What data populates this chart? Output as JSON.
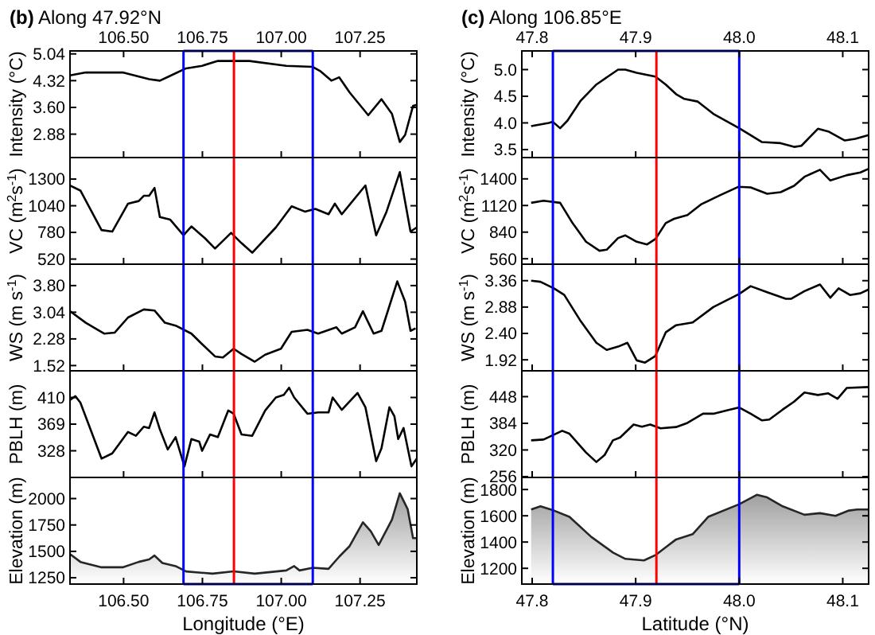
{
  "chart_data": [
    {
      "type": "line",
      "title": "(b) Along 47.92°N",
      "ylabel": "Intensity (°C)",
      "xlim": [
        106.33,
        107.43
      ],
      "xticks": [
        106.5,
        106.75,
        107,
        107.25
      ],
      "x2lim": [
        106.33,
        107.43
      ],
      "x2ticks": [
        {
          "value": 106.5,
          "label": "106.50"
        },
        106.75,
        {
          "value": 107,
          "label": "107.00"
        },
        107.25
      ],
      "tick_labels": "y",
      "ylim": [
        2.25,
        5.12
      ],
      "yticks": [
        2.88,
        {
          "value": 3.6,
          "label": "3.60"
        },
        4.32,
        5.04
      ],
      "color": "#000000",
      "x": [
        106.33,
        106.38,
        106.497,
        106.581,
        106.615,
        106.648,
        106.698,
        106.749,
        106.799,
        106.899,
        107.016,
        107.1,
        107.125,
        107.159,
        107.184,
        107.217,
        107.276,
        107.318,
        107.351,
        107.376,
        107.393,
        107.418,
        107.43
      ],
      "values": [
        4.46,
        4.54,
        4.54,
        4.36,
        4.32,
        4.45,
        4.65,
        4.72,
        4.85,
        4.85,
        4.72,
        4.69,
        4.57,
        4.32,
        4.41,
        4.0,
        3.39,
        3.82,
        3.43,
        2.67,
        2.86,
        3.64,
        3.67
      ],
      "ref_lines": [
        {
          "axis": "x",
          "value": 106.69,
          "color": "#0000ff"
        },
        {
          "axis": "x",
          "value": 107.1,
          "color": "#0000ff"
        },
        {
          "axis": "x",
          "value": 106.85,
          "color": "#ff0000"
        }
      ]
    },
    {
      "type": "line",
      "ylabel": "VC (m$^{2}$s$^{-1}$)",
      "xlim": [
        106.33,
        107.43
      ],
      "xticks": [
        106.5,
        106.75,
        107,
        107.25
      ],
      "tick_labels": "y",
      "ylim": [
        470,
        1510
      ],
      "yticks": [
        520,
        780,
        1040,
        1300
      ],
      "color": "#000000",
      "x": [
        106.33,
        106.363,
        106.43,
        106.464,
        106.514,
        106.548,
        106.564,
        106.581,
        106.598,
        106.615,
        106.648,
        106.69,
        106.715,
        106.757,
        106.79,
        106.841,
        106.874,
        106.908,
        106.983,
        107.033,
        107.075,
        107.108,
        107.15,
        107.17,
        107.192,
        107.267,
        107.301,
        107.334,
        107.376,
        107.41,
        107.43
      ],
      "values": [
        1238,
        1188,
        803,
        788,
        1060,
        1086,
        1137,
        1137,
        1214,
        930,
        904,
        752,
        838,
        726,
        622,
        776,
        675,
        582,
        829,
        1034,
        983,
        1009,
        957,
        1060,
        957,
        1238,
        752,
        983,
        1368,
        788,
        829
      ],
      "ref_lines": [
        {
          "axis": "x",
          "value": 106.69,
          "color": "#0000ff"
        },
        {
          "axis": "x",
          "value": 107.1,
          "color": "#0000ff"
        },
        {
          "axis": "x",
          "value": 106.85,
          "color": "#ff0000"
        }
      ]
    },
    {
      "type": "line",
      "ylabel": "WS (m s$^{-1}$)",
      "xlim": [
        106.33,
        107.43
      ],
      "xticks": [
        106.5,
        106.75,
        107,
        107.25
      ],
      "tick_labels": "y",
      "ylim": [
        1.37,
        4.41
      ],
      "yticks": [
        1.52,
        2.28,
        3.04,
        {
          "value": 3.8,
          "label": "3.80"
        }
      ],
      "color": "#000000",
      "x": [
        106.33,
        106.38,
        106.439,
        106.472,
        106.514,
        106.564,
        106.598,
        106.631,
        106.665,
        106.715,
        106.749,
        106.79,
        106.815,
        106.849,
        106.874,
        106.916,
        106.949,
        106.999,
        107.033,
        107.083,
        107.117,
        107.175,
        107.192,
        107.234,
        107.259,
        107.293,
        107.318,
        107.368,
        107.393,
        107.41,
        107.426
      ],
      "values": [
        3.07,
        2.74,
        2.43,
        2.46,
        2.89,
        3.12,
        3.09,
        2.74,
        2.66,
        2.43,
        2.13,
        1.78,
        1.75,
        2.0,
        1.85,
        1.63,
        1.83,
        2.0,
        2.48,
        2.54,
        2.43,
        2.61,
        2.43,
        2.61,
        3.07,
        2.43,
        2.51,
        3.92,
        3.34,
        2.51,
        2.58
      ],
      "ref_lines": [
        {
          "axis": "x",
          "value": 106.69,
          "color": "#0000ff"
        },
        {
          "axis": "x",
          "value": 107.1,
          "color": "#0000ff"
        },
        {
          "axis": "x",
          "value": 106.85,
          "color": "#ff0000"
        }
      ]
    },
    {
      "type": "line",
      "ylabel": "PBLH (m)",
      "xlim": [
        106.33,
        107.43
      ],
      "xticks": [
        106.5,
        106.75,
        107,
        107.25
      ],
      "tick_labels": "y",
      "ylim": [
        287,
        451
      ],
      "yticks": [
        328,
        369,
        410
      ],
      "color": "#000000",
      "x": [
        106.33,
        106.347,
        106.363,
        106.43,
        106.464,
        106.514,
        106.539,
        106.564,
        106.581,
        106.598,
        106.615,
        106.64,
        106.665,
        106.693,
        106.715,
        106.74,
        106.749,
        106.774,
        106.799,
        106.832,
        106.849,
        106.874,
        106.908,
        106.949,
        106.983,
        107.008,
        107.025,
        107.041,
        107.083,
        107.117,
        107.15,
        107.163,
        107.192,
        107.242,
        107.267,
        107.301,
        107.318,
        107.343,
        107.359,
        107.371,
        107.388,
        107.413,
        107.43
      ],
      "values": [
        406,
        412,
        402,
        316,
        324,
        357,
        351,
        365,
        363,
        387,
        361,
        330,
        349,
        304,
        346,
        342,
        328,
        353,
        349,
        390,
        385,
        353,
        351,
        390,
        410,
        414,
        425,
        410,
        385,
        387,
        387,
        410,
        391,
        417,
        395,
        312,
        332,
        395,
        381,
        346,
        363,
        304,
        316
      ],
      "ref_lines": [
        {
          "axis": "x",
          "value": 106.69,
          "color": "#0000ff"
        },
        {
          "axis": "x",
          "value": 107.1,
          "color": "#0000ff"
        },
        {
          "axis": "x",
          "value": 106.85,
          "color": "#ff0000"
        }
      ]
    },
    {
      "type": "area",
      "ylabel": "Elevation (m)",
      "xlabel": "Longitude (°E)",
      "xlim": [
        106.33,
        107.43
      ],
      "xticks": [
        {
          "value": 106.5,
          "label": "106.50"
        },
        106.75,
        {
          "value": 107,
          "label": "107.00"
        },
        107.25
      ],
      "ylim": [
        1190,
        2200
      ],
      "yticks": [
        1250,
        1500,
        1750,
        2000
      ],
      "color": "#a0a0a0",
      "x": [
        106.33,
        106.363,
        106.43,
        106.497,
        106.548,
        106.581,
        106.598,
        106.623,
        106.665,
        106.698,
        106.782,
        106.849,
        106.916,
        107.016,
        107.041,
        107.058,
        107.1,
        107.15,
        107.184,
        107.217,
        107.259,
        107.284,
        107.309,
        107.351,
        107.376,
        107.401,
        107.418,
        107.43
      ],
      "values": [
        1475,
        1400,
        1349,
        1349,
        1400,
        1424,
        1460,
        1390,
        1360,
        1310,
        1289,
        1310,
        1289,
        1319,
        1360,
        1319,
        1344,
        1334,
        1450,
        1550,
        1775,
        1690,
        1560,
        1800,
        2050,
        1900,
        1625,
        1625
      ],
      "ref_lines": [
        {
          "axis": "x",
          "value": 106.69,
          "color": "#0000ff"
        },
        {
          "axis": "x",
          "value": 107.1,
          "color": "#0000ff"
        },
        {
          "axis": "x",
          "value": 106.85,
          "color": "#ff0000"
        }
      ]
    },
    {
      "type": "line",
      "title": "(c) Along 106.85°E",
      "ylabel": "Intensity (°C)",
      "xlim": [
        47.79,
        48.125
      ],
      "xticks": [
        47.8,
        47.9,
        48,
        48.1
      ],
      "x2lim": [
        47.79,
        48.125
      ],
      "x2ticks": [
        47.8,
        47.9,
        {
          "value": 48,
          "label": "48.0"
        },
        48.1
      ],
      "tick_labels": "y",
      "ylim": [
        3.35,
        5.35
      ],
      "yticks": [
        3.5,
        {
          "value": 4,
          "label": "4.0"
        },
        4.5,
        {
          "value": 5,
          "label": "5.0"
        }
      ],
      "color": "#000000",
      "x": [
        47.799,
        47.816,
        47.82,
        47.827,
        47.834,
        47.847,
        47.862,
        47.883,
        47.89,
        47.901,
        47.919,
        47.929,
        47.939,
        47.947,
        47.96,
        47.975,
        48.0,
        48.022,
        48.04,
        48.053,
        48.06,
        48.076,
        48.086,
        48.102,
        48.112,
        48.125
      ],
      "values": [
        3.94,
        4.0,
        4.02,
        3.9,
        4.04,
        4.42,
        4.72,
        5.0,
        5.0,
        4.94,
        4.87,
        4.72,
        4.54,
        4.45,
        4.4,
        4.17,
        3.9,
        3.64,
        3.62,
        3.55,
        3.57,
        3.89,
        3.84,
        3.67,
        3.7,
        3.77
      ],
      "ref_lines": [
        {
          "axis": "x",
          "value": 47.82,
          "color": "#0000ff"
        },
        {
          "axis": "x",
          "value": 48.0,
          "color": "#0000ff"
        },
        {
          "axis": "x",
          "value": 47.92,
          "color": "#ff0000"
        }
      ]
    },
    {
      "type": "line",
      "ylabel": "VC (m$^{2}$s$^{-1}$)",
      "xlim": [
        47.79,
        48.125
      ],
      "xticks": [
        47.8,
        47.9,
        48,
        48.1
      ],
      "tick_labels": "y",
      "ylim": [
        503,
        1624
      ],
      "yticks": [
        560,
        840,
        1120,
        1400
      ],
      "color": "#000000",
      "x": [
        47.799,
        47.811,
        47.827,
        47.839,
        47.852,
        47.865,
        47.872,
        47.883,
        47.89,
        47.901,
        47.911,
        47.919,
        47.929,
        47.937,
        47.95,
        47.963,
        47.981,
        47.999,
        48.011,
        48.027,
        48.04,
        48.053,
        48.063,
        48.078,
        48.088,
        48.104,
        48.117,
        48.125
      ],
      "values": [
        1148,
        1170,
        1148,
        935,
        739,
        644,
        655,
        778,
        806,
        739,
        711,
        767,
        935,
        980,
        1019,
        1131,
        1226,
        1316,
        1310,
        1243,
        1260,
        1327,
        1422,
        1495,
        1383,
        1439,
        1467,
        1506
      ],
      "ref_lines": [
        {
          "axis": "x",
          "value": 47.82,
          "color": "#0000ff"
        },
        {
          "axis": "x",
          "value": 48.0,
          "color": "#0000ff"
        },
        {
          "axis": "x",
          "value": 47.92,
          "color": "#ff0000"
        }
      ]
    },
    {
      "type": "line",
      "ylabel": "WS (m s$^{-1}$)",
      "xlim": [
        47.79,
        48.125
      ],
      "xticks": [
        47.8,
        47.9,
        48,
        48.1
      ],
      "tick_labels": "y",
      "ylim": [
        1.72,
        3.66
      ],
      "yticks": [
        1.92,
        {
          "value": 2.4,
          "label": "2.40"
        },
        2.88,
        3.36
      ],
      "color": "#000000",
      "x": [
        47.799,
        47.808,
        47.821,
        47.831,
        47.847,
        47.862,
        47.872,
        47.883,
        47.892,
        47.901,
        47.909,
        47.919,
        47.929,
        47.939,
        47.955,
        47.975,
        48.0,
        48.011,
        48.027,
        48.045,
        48.05,
        48.063,
        48.078,
        48.088,
        48.096,
        48.107,
        48.117,
        48.125
      ],
      "values": [
        3.36,
        3.34,
        3.22,
        3.1,
        2.62,
        2.23,
        2.1,
        2.16,
        2.23,
        1.91,
        1.87,
        1.99,
        2.42,
        2.55,
        2.6,
        2.88,
        3.12,
        3.26,
        3.15,
        3.03,
        3.03,
        3.17,
        3.29,
        3.05,
        3.22,
        3.1,
        3.13,
        3.2
      ],
      "ref_lines": [
        {
          "axis": "x",
          "value": 47.82,
          "color": "#0000ff"
        },
        {
          "axis": "x",
          "value": 48.0,
          "color": "#0000ff"
        },
        {
          "axis": "x",
          "value": 47.92,
          "color": "#ff0000"
        }
      ]
    },
    {
      "type": "line",
      "ylabel": "PBLH (m)",
      "xlim": [
        47.79,
        48.125
      ],
      "xticks": [
        47.8,
        47.9,
        48,
        48.1
      ],
      "tick_labels": "y",
      "ylim": [
        254,
        510
      ],
      "yticks": [
        256,
        320,
        384,
        448
      ],
      "color": "#000000",
      "x": [
        47.799,
        47.811,
        47.829,
        47.836,
        47.852,
        47.862,
        47.87,
        47.878,
        47.885,
        47.898,
        47.906,
        47.914,
        47.924,
        47.939,
        47.95,
        47.965,
        47.975,
        47.988,
        48.0,
        48.011,
        48.022,
        48.029,
        48.042,
        48.053,
        48.063,
        48.076,
        48.086,
        48.095,
        48.104,
        48.125
      ],
      "values": [
        343,
        345,
        366,
        359,
        314,
        291,
        308,
        343,
        350,
        381,
        376,
        381,
        372,
        375,
        385,
        407,
        407,
        415,
        422,
        407,
        391,
        393,
        417,
        436,
        458,
        452,
        456,
        443,
        469,
        471
      ],
      "ref_lines": [
        {
          "axis": "x",
          "value": 47.82,
          "color": "#0000ff"
        },
        {
          "axis": "x",
          "value": 48.0,
          "color": "#0000ff"
        },
        {
          "axis": "x",
          "value": 47.92,
          "color": "#ff0000"
        }
      ]
    },
    {
      "type": "area",
      "ylabel": "Elevation (m)",
      "xlabel": "Latitude (°N)",
      "xlim": [
        47.79,
        48.125
      ],
      "xticks": [
        47.8,
        47.9,
        {
          "value": 48,
          "label": "48.0"
        },
        48.1
      ],
      "ylim": [
        1080,
        1892
      ],
      "yticks": [
        1200,
        1400,
        1600,
        1800
      ],
      "color": "#a0a0a0",
      "x": [
        47.799,
        47.808,
        47.821,
        47.836,
        47.857,
        47.878,
        47.89,
        47.908,
        47.919,
        47.929,
        47.939,
        47.955,
        47.97,
        48.0,
        48.017,
        48.027,
        48.042,
        48.063,
        48.078,
        48.093,
        48.106,
        48.114,
        48.125
      ],
      "values": [
        1648,
        1672,
        1640,
        1592,
        1440,
        1320,
        1272,
        1260,
        1300,
        1360,
        1420,
        1460,
        1592,
        1688,
        1760,
        1740,
        1672,
        1608,
        1620,
        1600,
        1640,
        1648,
        1648
      ],
      "ref_lines": [
        {
          "axis": "x",
          "value": 47.82,
          "color": "#0000ff"
        },
        {
          "axis": "x",
          "value": 48.0,
          "color": "#0000ff"
        },
        {
          "axis": "x",
          "value": 47.92,
          "color": "#ff0000"
        }
      ]
    }
  ]
}
